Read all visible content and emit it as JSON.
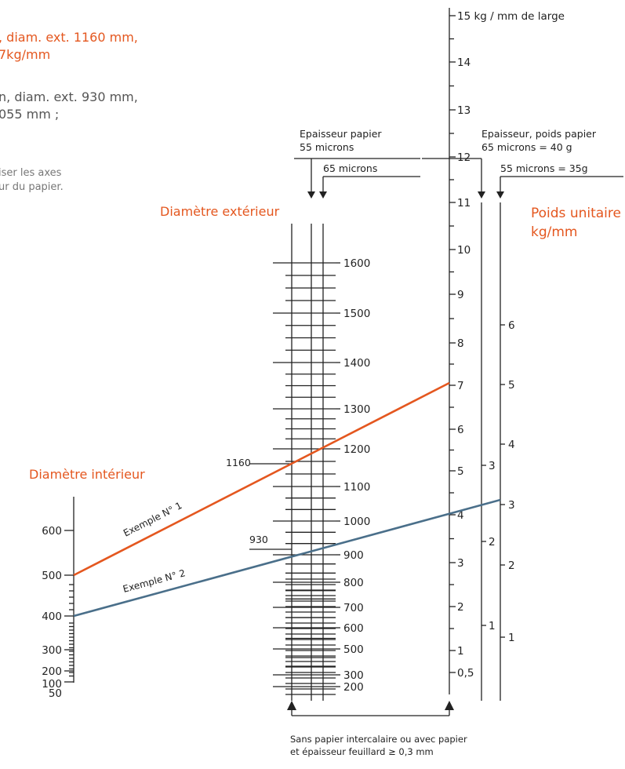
{
  "header": {
    "example1_line1": ", diam. ext. 1160 mm,",
    "example1_line2": "7kg/mm",
    "example2_line1": "n, diam. ext. 930 mm,",
    "example2_line2": "055 mm ;",
    "note_line1": "iser les axes",
    "note_line2": "ur du papier."
  },
  "labels": {
    "outer_diameter": "Diamètre extérieur",
    "inner_diameter": "Diamètre intérieur",
    "unit_weight_1": "Poids unitaire",
    "unit_weight_2": "kg/mm",
    "paper_thickness_1": "Epaisseur papier",
    "paper_thickness_2": "55 microns",
    "paper_65": "65 microns",
    "paper_weight_1": "Epaisseur, poids papier",
    "paper_weight_2": "65 microns = 40 g",
    "paper_weight_3": "55 microns = 35g",
    "footer_1": "Sans papier intercalaire ou avec papier",
    "footer_2": "et épaisseur feuillard ≥ 0,3 mm",
    "example1_tag": "Exemple N° 1",
    "example2_tag": "Exemple N° 2",
    "marker_1160": "1160",
    "marker_930": "930"
  },
  "axes": {
    "inner_ticks": [
      "600",
      "500",
      "400",
      "300",
      "200",
      "100",
      "50"
    ],
    "outer_ticks": [
      "1600",
      "1500",
      "1400",
      "1300",
      "1200",
      "1100",
      "1000",
      "900",
      "800",
      "700",
      "600",
      "500",
      "300",
      "200"
    ],
    "main_weight_ticks": [
      "15 kg / mm de large",
      "14",
      "13",
      "12",
      "11",
      "10",
      "9",
      "8",
      "7",
      "6",
      "5",
      "4",
      "3",
      "2",
      "1",
      "0,5"
    ],
    "paper65_ticks": [
      "3",
      "2",
      "1"
    ],
    "paper55_ticks": [
      "6",
      "5",
      "4",
      "3",
      "2",
      "1"
    ]
  },
  "colors": {
    "example1": "#e4571f",
    "example2": "#4a6f8a",
    "axis": "#222222"
  }
}
